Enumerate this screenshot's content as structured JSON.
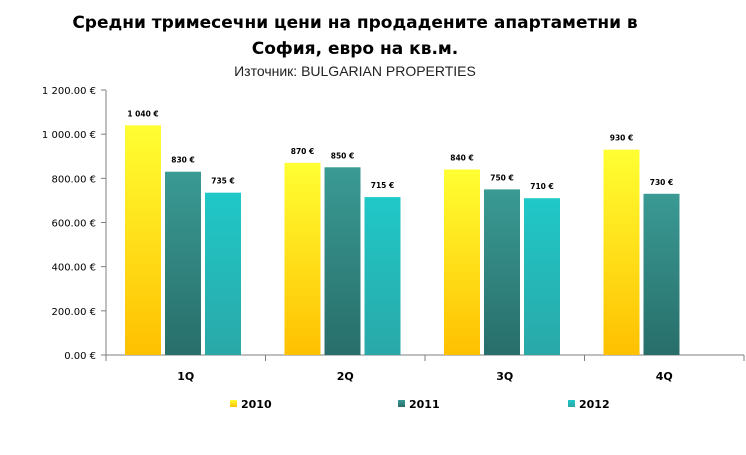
{
  "chart_data": {
    "type": "bar",
    "title_line1": "Средни тримесечни цени на продадените апартаметни в",
    "title_line2": "София, евро на кв.м.",
    "subtitle": "Източник: BULGARIAN PROPERTIES",
    "categories": [
      "1Q",
      "2Q",
      "3Q",
      "4Q"
    ],
    "series": [
      {
        "name": "2010",
        "values": [
          1040,
          870,
          840,
          930
        ],
        "labels": [
          "1 040 €",
          "870 €",
          "840 €",
          "930 €"
        ]
      },
      {
        "name": "2011",
        "values": [
          830,
          850,
          750,
          730
        ],
        "labels": [
          "830 €",
          "850 €",
          "750 €",
          "730 €"
        ]
      },
      {
        "name": "2012",
        "values": [
          735,
          715,
          710,
          null
        ],
        "labels": [
          "735 €",
          "715 €",
          "710 €",
          null
        ]
      }
    ],
    "yticks": [
      {
        "value": 0,
        "label": "0.00 €"
      },
      {
        "value": 200,
        "label": "200.00 €"
      },
      {
        "value": 400,
        "label": "400.00 €"
      },
      {
        "value": 600,
        "label": "600.00 €"
      },
      {
        "value": 800,
        "label": "800.00 €"
      },
      {
        "value": 1000,
        "label": "1 000.00 €"
      },
      {
        "value": 1200,
        "label": "1 200.00 €"
      }
    ],
    "ylim": [
      0,
      1200
    ],
    "grid": false,
    "legend_position": "bottom",
    "colors": {
      "2010_top": "#ffff33",
      "2010_bottom": "#ffc000",
      "2011_top": "#3a9a94",
      "2011_bottom": "#286e6a",
      "2012_top": "#20c8c8",
      "2012_bottom": "#2aa8a8"
    }
  }
}
